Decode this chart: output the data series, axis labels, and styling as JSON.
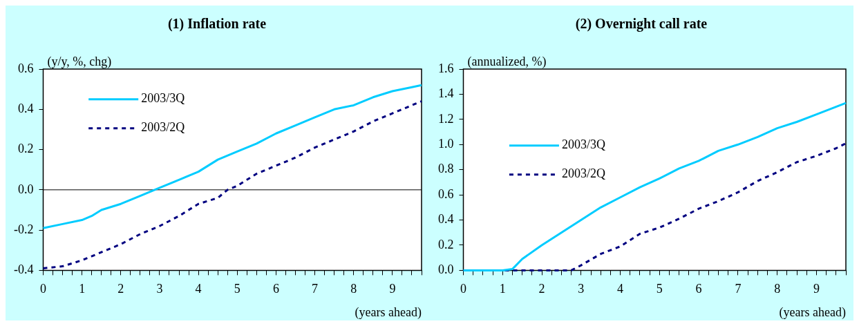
{
  "chart_data": [
    {
      "type": "line",
      "title": "(1) Inflation rate",
      "ylabel": "(y/y, %, chg)",
      "xlabel": "(years ahead)",
      "xlim": [
        0,
        9.75
      ],
      "ylim": [
        -0.4,
        0.6
      ],
      "xticks": [
        0,
        {
          "value": 0.25,
          "label": null
        },
        {
          "value": 0.5,
          "label": null
        },
        {
          "value": 0.75,
          "label": null
        },
        1,
        {
          "value": 1.25,
          "label": null
        },
        {
          "value": 1.5,
          "label": null
        },
        {
          "value": 1.75,
          "label": null
        },
        2,
        {
          "value": 2.25,
          "label": null
        },
        {
          "value": 2.5,
          "label": null
        },
        {
          "value": 2.75,
          "label": null
        },
        3,
        {
          "value": 3.25,
          "label": null
        },
        {
          "value": 3.5,
          "label": null
        },
        {
          "value": 3.75,
          "label": null
        },
        4,
        {
          "value": 4.25,
          "label": null
        },
        {
          "value": 4.5,
          "label": null
        },
        {
          "value": 4.75,
          "label": null
        },
        5,
        {
          "value": 5.25,
          "label": null
        },
        {
          "value": 5.5,
          "label": null
        },
        {
          "value": 5.75,
          "label": null
        },
        6,
        {
          "value": 6.25,
          "label": null
        },
        {
          "value": 6.5,
          "label": null
        },
        {
          "value": 6.75,
          "label": null
        },
        7,
        {
          "value": 7.25,
          "label": null
        },
        {
          "value": 7.5,
          "label": null
        },
        {
          "value": 7.75,
          "label": null
        },
        8,
        {
          "value": 8.25,
          "label": null
        },
        {
          "value": 8.5,
          "label": null
        },
        {
          "value": 8.75,
          "label": null
        },
        9,
        {
          "value": 9.25,
          "label": null
        },
        {
          "value": 9.5,
          "label": null
        },
        {
          "value": 9.75,
          "label": null
        }
      ],
      "yticks": [
        {
          "value": -0.4,
          "label": "-0.4"
        },
        {
          "value": -0.2,
          "label": "-0.2"
        },
        {
          "value": 0,
          "label": "0.0"
        },
        {
          "value": 0.2,
          "label": "0.2"
        },
        {
          "value": 0.4,
          "label": "0.4"
        },
        {
          "value": 0.6,
          "label": "0.6"
        }
      ],
      "grid": false,
      "legend": "top left",
      "marker": "none",
      "ref_lines": [
        {
          "axis": "y",
          "value": 0,
          "color": "#000000"
        }
      ],
      "series": [
        {
          "name": "2003/3Q",
          "color": "#00ccff",
          "line_style": "solid",
          "x": [
            0,
            0.5,
            1,
            1.25,
            1.5,
            2,
            2.5,
            3,
            3.5,
            4,
            4.5,
            5,
            5.5,
            6,
            6.5,
            7,
            7.5,
            8,
            8.5,
            9,
            9.5,
            9.75
          ],
          "values": [
            -0.19,
            -0.17,
            -0.15,
            -0.13,
            -0.1,
            -0.07,
            -0.03,
            0.01,
            0.05,
            0.09,
            0.15,
            0.19,
            0.23,
            0.28,
            0.32,
            0.36,
            0.4,
            0.42,
            0.46,
            0.49,
            0.51,
            0.52
          ]
        },
        {
          "name": "2003/2Q",
          "color": "#000080",
          "line_style": "dashed",
          "x": [
            0,
            0.5,
            1,
            1.5,
            2,
            2.5,
            3,
            3.5,
            4,
            4.5,
            4.75,
            5,
            5.5,
            6,
            6.5,
            7,
            7.5,
            8,
            8.5,
            9,
            9.5,
            9.75
          ],
          "values": [
            -0.39,
            -0.38,
            -0.35,
            -0.31,
            -0.27,
            -0.22,
            -0.18,
            -0.13,
            -0.07,
            -0.04,
            0,
            0.02,
            0.08,
            0.12,
            0.16,
            0.21,
            0.25,
            0.29,
            0.34,
            0.38,
            0.42,
            0.44
          ]
        }
      ]
    },
    {
      "type": "line",
      "title": "(2) Overnight call rate",
      "ylabel": "(annualized, %)",
      "xlabel": "(years ahead)",
      "xlim": [
        0,
        9.75
      ],
      "ylim": [
        0,
        1.6
      ],
      "xticks": [
        0,
        {
          "value": 0.25,
          "label": null
        },
        {
          "value": 0.5,
          "label": null
        },
        {
          "value": 0.75,
          "label": null
        },
        1,
        {
          "value": 1.25,
          "label": null
        },
        {
          "value": 1.5,
          "label": null
        },
        {
          "value": 1.75,
          "label": null
        },
        2,
        {
          "value": 2.25,
          "label": null
        },
        {
          "value": 2.5,
          "label": null
        },
        {
          "value": 2.75,
          "label": null
        },
        3,
        {
          "value": 3.25,
          "label": null
        },
        {
          "value": 3.5,
          "label": null
        },
        {
          "value": 3.75,
          "label": null
        },
        4,
        {
          "value": 4.25,
          "label": null
        },
        {
          "value": 4.5,
          "label": null
        },
        {
          "value": 4.75,
          "label": null
        },
        5,
        {
          "value": 5.25,
          "label": null
        },
        {
          "value": 5.5,
          "label": null
        },
        {
          "value": 5.75,
          "label": null
        },
        6,
        {
          "value": 6.25,
          "label": null
        },
        {
          "value": 6.5,
          "label": null
        },
        {
          "value": 6.75,
          "label": null
        },
        7,
        {
          "value": 7.25,
          "label": null
        },
        {
          "value": 7.5,
          "label": null
        },
        {
          "value": 7.75,
          "label": null
        },
        8,
        {
          "value": 8.25,
          "label": null
        },
        {
          "value": 8.5,
          "label": null
        },
        {
          "value": 8.75,
          "label": null
        },
        9,
        {
          "value": 9.25,
          "label": null
        },
        {
          "value": 9.5,
          "label": null
        },
        {
          "value": 9.75,
          "label": null
        }
      ],
      "yticks": [
        {
          "value": 0,
          "label": "0.0"
        },
        {
          "value": 0.2,
          "label": "0.2"
        },
        {
          "value": 0.4,
          "label": "0.4"
        },
        {
          "value": 0.6,
          "label": "0.6"
        },
        {
          "value": 0.8,
          "label": "0.8"
        },
        {
          "value": 1,
          "label": "1.0"
        },
        {
          "value": 1.2,
          "label": "1.2"
        },
        {
          "value": 1.4,
          "label": "1.4"
        },
        {
          "value": 1.6,
          "label": "1.6"
        }
      ],
      "grid": false,
      "legend": "left",
      "marker": "none",
      "series": [
        {
          "name": "2003/3Q",
          "color": "#00ccff",
          "line_style": "solid",
          "x": [
            0,
            0.5,
            1,
            1.25,
            1.5,
            2,
            2.5,
            3,
            3.5,
            4,
            4.5,
            5,
            5.5,
            6,
            6.5,
            7,
            7.5,
            8,
            8.5,
            9,
            9.5,
            9.75
          ],
          "values": [
            0,
            0,
            0,
            0.01,
            0.09,
            0.2,
            0.3,
            0.4,
            0.5,
            0.58,
            0.66,
            0.73,
            0.81,
            0.87,
            0.95,
            1,
            1.06,
            1.13,
            1.18,
            1.24,
            1.3,
            1.33
          ]
        },
        {
          "name": "2003/2Q",
          "color": "#000080",
          "line_style": "dashed",
          "x": [
            0,
            0.5,
            1,
            1.5,
            2,
            2.5,
            2.75,
            3,
            3.5,
            4,
            4.5,
            5,
            5.5,
            6,
            6.5,
            7,
            7.5,
            8,
            8.5,
            9,
            9.5,
            9.75
          ],
          "values": [
            0,
            0,
            0,
            0,
            0,
            0,
            0,
            0.04,
            0.13,
            0.19,
            0.29,
            0.34,
            0.41,
            0.49,
            0.55,
            0.62,
            0.71,
            0.78,
            0.86,
            0.91,
            0.97,
            1.01
          ]
        }
      ]
    }
  ]
}
